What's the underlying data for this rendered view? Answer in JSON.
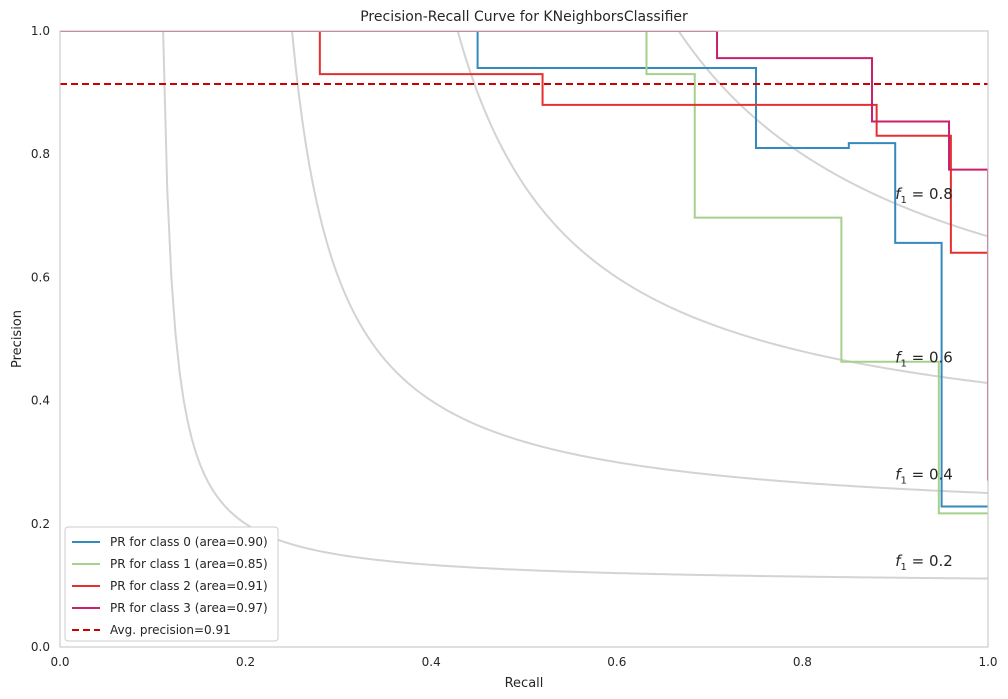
{
  "chart_data": {
    "type": "line",
    "title": "Precision-Recall Curve for KNeighborsClassifier",
    "xlabel": "Recall",
    "ylabel": "Precision",
    "xlim": [
      0,
      1
    ],
    "ylim": [
      0,
      1
    ],
    "xticks": [
      "0.0",
      "0.2",
      "0.4",
      "0.6",
      "0.8",
      "1.0"
    ],
    "yticks": [
      "0.0",
      "0.2",
      "0.4",
      "0.6",
      "0.8",
      "1.0"
    ],
    "grid": false,
    "legend_position": "bottom-left",
    "iso_f1": [
      {
        "f1": 0.2,
        "label_prefix": "f",
        "label_sub": "1",
        "label_suffix": " = 0.2",
        "label_x": 0.9,
        "label_y": 0.14
      },
      {
        "f1": 0.4,
        "label_prefix": "f",
        "label_sub": "1",
        "label_suffix": " = 0.4",
        "label_x": 0.9,
        "label_y": 0.28
      },
      {
        "f1": 0.6,
        "label_prefix": "f",
        "label_sub": "1",
        "label_suffix": " = 0.6",
        "label_x": 0.9,
        "label_y": 0.47
      },
      {
        "f1": 0.8,
        "label_prefix": "f",
        "label_sub": "1",
        "label_suffix": " = 0.8",
        "label_x": 0.9,
        "label_y": 0.735
      }
    ],
    "series": [
      {
        "name": "PR for class 0 (area=0.90)",
        "color": "#348abd",
        "x": [
          0,
          0.45,
          0.45,
          0.75,
          0.75,
          0.85,
          0.85,
          0.9,
          0.9,
          0.95,
          0.95,
          1.0
        ],
        "y": [
          1.0,
          1.0,
          0.94,
          0.94,
          0.81,
          0.81,
          0.818,
          0.818,
          0.656,
          0.656,
          0.228,
          0.228
        ]
      },
      {
        "name": "PR for class 1 (area=0.85)",
        "color": "#a6d18b",
        "x": [
          0,
          0.632,
          0.632,
          0.684,
          0.684,
          0.842,
          0.842,
          0.947,
          0.947,
          1.0
        ],
        "y": [
          1.0,
          1.0,
          0.93,
          0.93,
          0.697,
          0.697,
          0.463,
          0.463,
          0.217,
          0.217
        ]
      },
      {
        "name": "PR for class 2 (area=0.91)",
        "color": "#e4302e",
        "x": [
          0,
          0.28,
          0.28,
          0.52,
          0.52,
          0.88,
          0.88,
          0.96,
          0.96,
          1.0,
          1.0
        ],
        "y": [
          1.0,
          1.0,
          0.93,
          0.93,
          0.88,
          0.88,
          0.83,
          0.83,
          0.64,
          0.64,
          0.3
        ]
      },
      {
        "name": "PR for class 3 (area=0.97)",
        "color": "#c8216e",
        "x": [
          0,
          0.708,
          0.708,
          0.875,
          0.875,
          0.958,
          0.958,
          1.0,
          1.0
        ],
        "y": [
          1.0,
          1.0,
          0.956,
          0.956,
          0.853,
          0.853,
          0.775,
          0.775,
          0.27
        ]
      }
    ],
    "average_precision": {
      "name": "Avg. precision=0.91",
      "value": 0.914,
      "color": "#cc0000",
      "style": "dashed"
    }
  }
}
